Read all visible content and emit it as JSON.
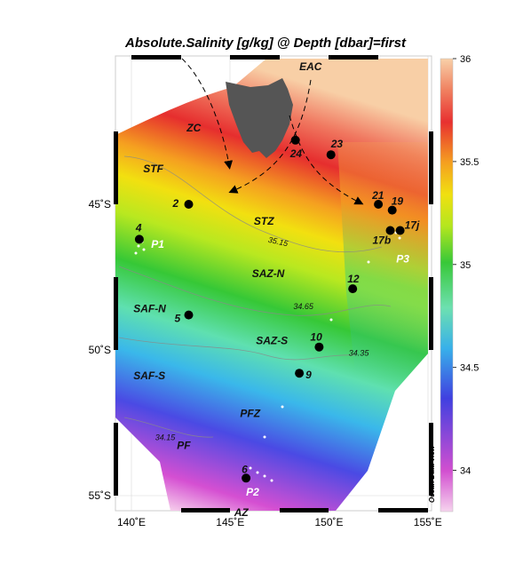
{
  "title": "Absolute.Salinity [g/kg] @ Depth [dbar]=first",
  "axes": {
    "x_ticks": [
      {
        "value": 140,
        "label": "140˚E"
      },
      {
        "value": 145,
        "label": "145˚E"
      },
      {
        "value": 150,
        "label": "150˚E"
      },
      {
        "value": 155,
        "label": "155˚E"
      }
    ],
    "y_ticks": [
      {
        "value": -45,
        "label": "45˚S"
      },
      {
        "value": -50,
        "label": "50˚S"
      },
      {
        "value": -55,
        "label": "55˚S"
      }
    ],
    "lon_range": [
      139,
      155
    ],
    "lat_range": [
      -55.5,
      -38.5
    ]
  },
  "colorbar": {
    "range": [
      33.8,
      36
    ],
    "ticks": [
      {
        "value": 34,
        "label": "34"
      },
      {
        "value": 34.5,
        "label": "34.5"
      },
      {
        "value": 35,
        "label": "35"
      },
      {
        "value": 35.5,
        "label": "35.5"
      },
      {
        "value": 36,
        "label": "36"
      }
    ],
    "colors": [
      "#f4c8ea",
      "#d24fd0",
      "#4040e0",
      "#3ab4e8",
      "#6de0b0",
      "#38c838",
      "#b4e61e",
      "#f0e010",
      "#f5a020",
      "#e83030",
      "#f08060",
      "#f8d0a8"
    ]
  },
  "zones": [
    {
      "label": "EAC",
      "lon": 148.5,
      "lat": -40.4
    },
    {
      "label": "ZC",
      "lon": 142.8,
      "lat": -42.5
    },
    {
      "label": "STF",
      "lon": 140.6,
      "lat": -43.9
    },
    {
      "label": "STZ",
      "lon": 146.2,
      "lat": -45.7
    },
    {
      "label": "SAZ-N",
      "lon": 146.1,
      "lat": -47.5
    },
    {
      "label": "SAF-N",
      "lon": 140.1,
      "lat": -48.7
    },
    {
      "label": "SAZ-S",
      "lon": 146.3,
      "lat": -49.8
    },
    {
      "label": "SAF-S",
      "lon": 140.1,
      "lat": -51.0
    },
    {
      "label": "PFZ",
      "lon": 145.5,
      "lat": -52.3
    },
    {
      "label": "PF",
      "lon": 142.3,
      "lat": -53.4
    },
    {
      "label": "AZ",
      "lon": 145.2,
      "lat": -55.7
    }
  ],
  "stations": [
    {
      "label": "2",
      "lon": 142.9,
      "lat": -45.0,
      "dx": -18,
      "dy": 3
    },
    {
      "label": "4",
      "lon": 140.4,
      "lat": -46.2,
      "dx": -4,
      "dy": -9
    },
    {
      "label": "5",
      "lon": 142.9,
      "lat": -48.8,
      "dx": -16,
      "dy": 8
    },
    {
      "label": "6",
      "lon": 145.8,
      "lat": -54.4,
      "dx": -5,
      "dy": -6
    },
    {
      "label": "9",
      "lon": 148.5,
      "lat": -50.8,
      "dx": 7,
      "dy": 6
    },
    {
      "label": "10",
      "lon": 149.5,
      "lat": -49.9,
      "dx": -10,
      "dy": -7
    },
    {
      "label": "12",
      "lon": 151.2,
      "lat": -47.9,
      "dx": -6,
      "dy": -7
    },
    {
      "label": "17b",
      "lon": 153.1,
      "lat": -45.9,
      "dx": -20,
      "dy": 15
    },
    {
      "label": "17j",
      "lon": 153.6,
      "lat": -45.9,
      "dx": 5,
      "dy": -2
    },
    {
      "label": "19",
      "lon": 153.2,
      "lat": -45.2,
      "dx": -1,
      "dy": -6
    },
    {
      "label": "21",
      "lon": 152.5,
      "lat": -45.0,
      "dx": -7,
      "dy": -6
    },
    {
      "label": "23",
      "lon": 150.1,
      "lat": -43.3,
      "dx": 0,
      "dy": -8
    },
    {
      "label": "24",
      "lon": 148.3,
      "lat": -42.8,
      "dx": -6,
      "dy": 19
    }
  ],
  "float_labels": [
    {
      "label": "P1",
      "lon": 141.0,
      "lat": -46.5
    },
    {
      "label": "P2",
      "lon": 145.8,
      "lat": -55.0
    },
    {
      "label": "P3",
      "lon": 153.4,
      "lat": -47.0
    }
  ],
  "contours": [
    {
      "label": "35.15",
      "lon": 146.9,
      "lat": -46.3
    },
    {
      "label": "34.65",
      "lon": 148.2,
      "lat": -48.6
    },
    {
      "label": "34.35",
      "lon": 151.0,
      "lat": -50.2
    },
    {
      "label": "34.15",
      "lon": 141.2,
      "lat": -53.1
    }
  ],
  "watermark": "Ocean Data View"
}
